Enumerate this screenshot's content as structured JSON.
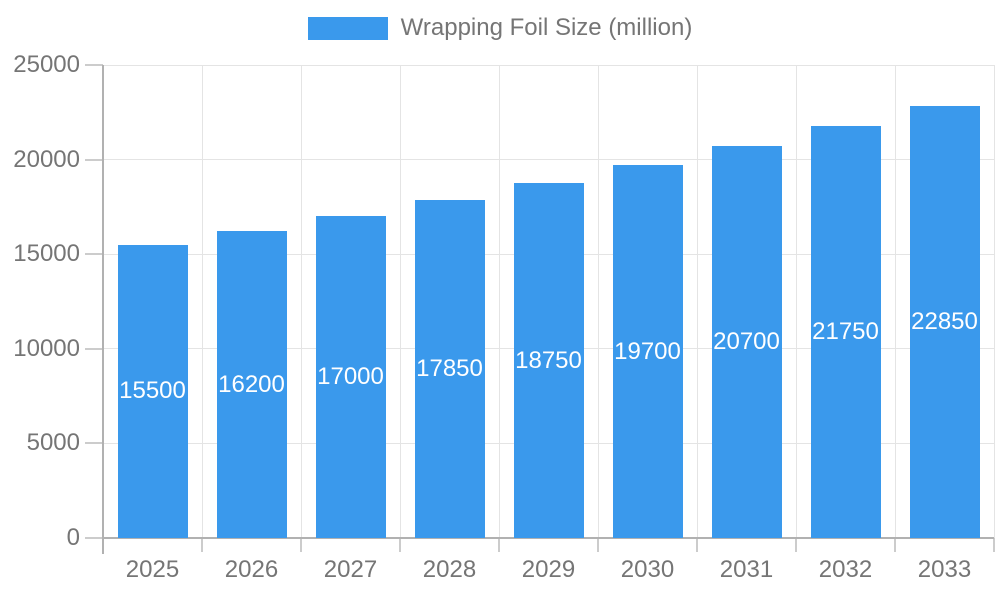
{
  "legend": {
    "label": "Wrapping Foil Size (million)"
  },
  "colors": {
    "bar": "#3a99ec",
    "axis": "#b1b1b1",
    "grid": "#e4e4e4",
    "tick": "#cccccc",
    "text": "#757575",
    "bar_label": "#ffffff",
    "background": "#ffffff"
  },
  "chart_data": {
    "type": "bar",
    "title": "",
    "xlabel": "",
    "ylabel": "",
    "legend_position": "top",
    "grid": true,
    "categories": [
      "2025",
      "2026",
      "2027",
      "2028",
      "2029",
      "2030",
      "2031",
      "2032",
      "2033"
    ],
    "series": [
      {
        "name": "Wrapping Foil Size (million)",
        "color": "#3a99ec",
        "values": [
          15500,
          16200,
          17000,
          17850,
          18750,
          19700,
          20700,
          21750,
          22850
        ]
      }
    ],
    "ylim": [
      0,
      25000
    ],
    "yticks": [
      0,
      5000,
      10000,
      15000,
      20000,
      25000
    ],
    "value_label_position": "inside-center",
    "value_label_color": "#ffffff"
  }
}
